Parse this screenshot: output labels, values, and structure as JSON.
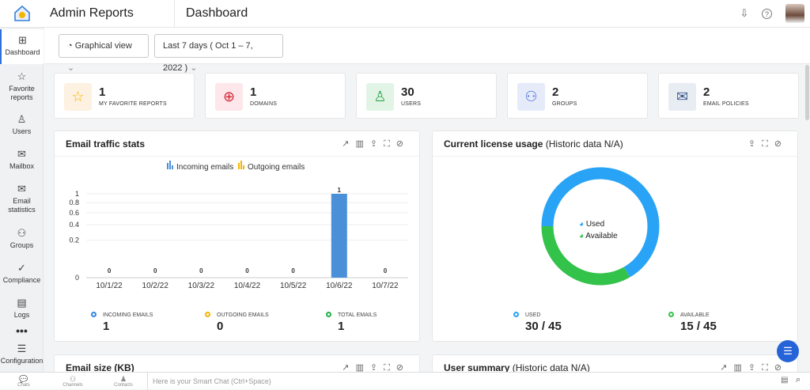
{
  "header": {
    "app_title": "Admin Reports",
    "page_title": "Dashboard"
  },
  "sidebar": {
    "items": [
      {
        "label": "Dashboard",
        "icon": "grid-icon"
      },
      {
        "label": "Favorite reports",
        "icon": "favorite-report-icon"
      },
      {
        "label": "Users",
        "icon": "user-icon"
      },
      {
        "label": "Mailbox",
        "icon": "mail-icon"
      },
      {
        "label": "Email statistics",
        "icon": "email-stats-icon"
      },
      {
        "label": "Groups",
        "icon": "groups-icon"
      },
      {
        "label": "Compliance",
        "icon": "check-circle-icon"
      },
      {
        "label": "Logs",
        "icon": "log-icon"
      },
      {
        "label": "Configuration",
        "icon": "sliders-icon"
      }
    ]
  },
  "toolbar": {
    "view": "Graphical view",
    "range": "Last 7 days ( Oct 1 – 7, 2022 )"
  },
  "cards": [
    {
      "value": "1",
      "label": "MY FAVORITE REPORTS",
      "color": "#f5b400",
      "bg": "#fdf1e1"
    },
    {
      "value": "1",
      "label": "DOMAINS",
      "color": "#d6263a",
      "bg": "#fde7ea"
    },
    {
      "value": "30",
      "label": "USERS",
      "color": "#2fa84f",
      "bg": "#e2f4e6"
    },
    {
      "value": "2",
      "label": "GROUPS",
      "color": "#4a6fd8",
      "bg": "#e6ebfa"
    },
    {
      "value": "2",
      "label": "EMAIL POLICIES",
      "color": "#3d5a8c",
      "bg": "#e8ecf3"
    }
  ],
  "traffic": {
    "title": "Email traffic stats",
    "stats": [
      {
        "label": "INCOMING EMAILS",
        "value": "1",
        "color": "#2f88e0"
      },
      {
        "label": "OUTGOING EMAILS",
        "value": "0",
        "color": "#f5b400"
      },
      {
        "label": "TOTAL EMAILS",
        "value": "1",
        "color": "#22b04b"
      }
    ]
  },
  "license": {
    "title": "Current license usage",
    "note": "(Historic data N/A)",
    "legend": [
      "Used",
      "Available"
    ],
    "stats": [
      {
        "label": "USED",
        "value": "30 / 45",
        "color": "#29a3f5"
      },
      {
        "label": "AVAILABLE",
        "value": "15 / 45",
        "color": "#33c24a"
      }
    ],
    "used": 30,
    "available": 15,
    "total": 45
  },
  "size": {
    "title": "Email size (KB)"
  },
  "summary": {
    "title": "User summary",
    "note": "(Historic data N/A)"
  },
  "bottom": {
    "chats": "Chats",
    "channels": "Channels",
    "contacts": "Contacts",
    "chat_placeholder": "Here is your Smart Chat (Ctrl+Space)"
  },
  "chart_data": {
    "type": "bar",
    "y_scale": "sqrt",
    "categories": [
      "10/1/22",
      "10/2/22",
      "10/3/22",
      "10/4/22",
      "10/5/22",
      "10/6/22",
      "10/7/22"
    ],
    "series": [
      {
        "name": "Incoming emails",
        "color": "#4a90d9",
        "values": [
          0,
          0,
          0,
          0,
          0,
          1,
          0
        ]
      },
      {
        "name": "Outgoing emails",
        "color": "#f5b400",
        "values": [
          0,
          0,
          0,
          0,
          0,
          0,
          0
        ]
      }
    ],
    "yticks": [
      0,
      0.2,
      0.4,
      0.6,
      0.8,
      1
    ],
    "ylim": [
      0,
      1
    ],
    "legend": "top",
    "grid": true
  }
}
